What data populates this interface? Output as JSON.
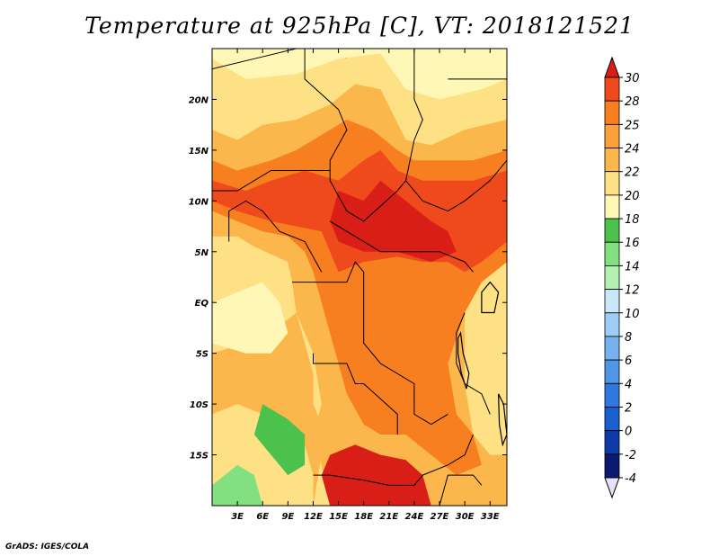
{
  "title": "Temperature at 925hPa [C], VT: 2018121521",
  "credit": "GrADS: IGES/COLA",
  "map": {
    "lon_range": [
      0,
      35
    ],
    "lat_range": [
      -20,
      25
    ],
    "lon_ticks": [
      {
        "value": 3,
        "label": "3E"
      },
      {
        "value": 6,
        "label": "6E"
      },
      {
        "value": 9,
        "label": "9E"
      },
      {
        "value": 12,
        "label": "12E"
      },
      {
        "value": 15,
        "label": "15E"
      },
      {
        "value": 18,
        "label": "18E"
      },
      {
        "value": 21,
        "label": "21E"
      },
      {
        "value": 24,
        "label": "24E"
      },
      {
        "value": 27,
        "label": "27E"
      },
      {
        "value": 30,
        "label": "30E"
      },
      {
        "value": 33,
        "label": "33E"
      }
    ],
    "lat_ticks": [
      {
        "value": 20,
        "label": "20N"
      },
      {
        "value": 15,
        "label": "15N"
      },
      {
        "value": 10,
        "label": "10N"
      },
      {
        "value": 5,
        "label": "5N"
      },
      {
        "value": 0,
        "label": "EQ"
      },
      {
        "value": -5,
        "label": "5S"
      },
      {
        "value": -10,
        "label": "10S"
      },
      {
        "value": -15,
        "label": "15S"
      }
    ],
    "color_scale": [
      {
        "min": 28,
        "color": "#d91e18"
      },
      {
        "min": 26,
        "color": "#ef4a1c"
      },
      {
        "min": 24,
        "color": "#f77f1f"
      },
      {
        "min": 22,
        "color": "#fbb74b"
      },
      {
        "min": 20,
        "color": "#fde184"
      },
      {
        "min": 18,
        "color": "#fff7b5"
      },
      {
        "min": 16,
        "color": "#4cc24c"
      },
      {
        "min": 14,
        "color": "#82e080"
      },
      {
        "min": -99,
        "color": "#b4f0b0"
      }
    ],
    "temperature_regions": [
      {
        "temp": 21,
        "points": [
          [
            0,
            25
          ],
          [
            35,
            25
          ],
          [
            35,
            -20
          ],
          [
            0,
            -20
          ]
        ]
      },
      {
        "temp": 15,
        "points": [
          [
            0,
            25
          ],
          [
            4,
            24
          ],
          [
            7,
            25
          ],
          [
            0,
            25
          ]
        ]
      },
      {
        "temp": 15,
        "points": [
          [
            11,
            25
          ],
          [
            16,
            24
          ],
          [
            16,
            25
          ]
        ]
      },
      {
        "temp": 15,
        "points": [
          [
            21,
            25
          ],
          [
            26,
            22.5
          ],
          [
            29,
            21.5
          ],
          [
            31,
            23
          ],
          [
            33,
            24
          ],
          [
            35,
            25
          ]
        ]
      },
      {
        "temp": 19,
        "points": [
          [
            0,
            24
          ],
          [
            4,
            22
          ],
          [
            10,
            22.5
          ],
          [
            15,
            24
          ],
          [
            20,
            24.5
          ],
          [
            23,
            21
          ],
          [
            27,
            20
          ],
          [
            32,
            21
          ],
          [
            35,
            22
          ],
          [
            35,
            25
          ],
          [
            0,
            25
          ]
        ]
      },
      {
        "temp": 23,
        "points": [
          [
            0,
            17
          ],
          [
            3,
            16
          ],
          [
            6,
            17.5
          ],
          [
            10,
            18
          ],
          [
            14,
            19.5
          ],
          [
            17,
            21.5
          ],
          [
            20,
            21
          ],
          [
            23,
            16
          ],
          [
            26,
            15.5
          ],
          [
            30,
            17
          ],
          [
            35,
            18
          ],
          [
            35,
            6
          ],
          [
            33,
            4
          ],
          [
            30,
            1
          ],
          [
            30,
            -8
          ],
          [
            31,
            -13
          ],
          [
            33,
            -15
          ],
          [
            35,
            -15
          ],
          [
            35,
            -20
          ],
          [
            14,
            -20
          ],
          [
            13,
            -16
          ],
          [
            12,
            -13
          ],
          [
            13,
            -10
          ],
          [
            12,
            -5
          ],
          [
            11,
            -3
          ],
          [
            10,
            -1
          ],
          [
            9.5,
            2
          ],
          [
            9,
            4
          ],
          [
            5,
            5.5
          ],
          [
            3,
            6.5
          ],
          [
            0,
            6.5
          ]
        ]
      },
      {
        "temp": 25,
        "points": [
          [
            0,
            14
          ],
          [
            3,
            13
          ],
          [
            7,
            14
          ],
          [
            10,
            15
          ],
          [
            13,
            16.5
          ],
          [
            16,
            18
          ],
          [
            19,
            17
          ],
          [
            22,
            15
          ],
          [
            24,
            14
          ],
          [
            27,
            14
          ],
          [
            31,
            14
          ],
          [
            35,
            15
          ],
          [
            35,
            4
          ],
          [
            32,
            2
          ],
          [
            30,
            -1
          ],
          [
            28,
            -6
          ],
          [
            29,
            -11
          ],
          [
            31,
            -13
          ],
          [
            32,
            -16
          ],
          [
            29,
            -17
          ],
          [
            26,
            -15
          ],
          [
            23,
            -13
          ],
          [
            20,
            -13
          ],
          [
            18,
            -12
          ],
          [
            16,
            -9
          ],
          [
            15,
            -6
          ],
          [
            14,
            -3
          ],
          [
            13,
            0
          ],
          [
            12,
            3
          ],
          [
            11,
            5
          ],
          [
            9,
            6.5
          ],
          [
            6,
            7
          ],
          [
            3,
            8
          ],
          [
            0,
            9
          ]
        ]
      },
      {
        "temp": 27,
        "points": [
          [
            0,
            12
          ],
          [
            4,
            11
          ],
          [
            7,
            12
          ],
          [
            11,
            13
          ],
          [
            15,
            12
          ],
          [
            18,
            14
          ],
          [
            20,
            15
          ],
          [
            22,
            13
          ],
          [
            25,
            12
          ],
          [
            28,
            12
          ],
          [
            31,
            12
          ],
          [
            35,
            13
          ],
          [
            35,
            6
          ],
          [
            32,
            4
          ],
          [
            30,
            3
          ],
          [
            28,
            4
          ],
          [
            25,
            4
          ],
          [
            22,
            4.5
          ],
          [
            18,
            4
          ],
          [
            15,
            3
          ],
          [
            14,
            5
          ],
          [
            13,
            7
          ],
          [
            10,
            7.5
          ],
          [
            7,
            8
          ],
          [
            3,
            9
          ],
          [
            0,
            10
          ]
        ]
      },
      {
        "temp": 29,
        "points": [
          [
            15,
            11
          ],
          [
            18,
            10
          ],
          [
            20,
            12
          ],
          [
            23,
            10
          ],
          [
            26,
            8
          ],
          [
            28,
            7
          ],
          [
            29,
            5
          ],
          [
            26,
            4
          ],
          [
            22,
            5
          ],
          [
            18,
            5
          ],
          [
            15,
            6
          ],
          [
            14,
            8
          ]
        ]
      },
      {
        "temp": 29,
        "points": [
          [
            14,
            -15
          ],
          [
            17,
            -14
          ],
          [
            20,
            -15
          ],
          [
            23,
            -15.5
          ],
          [
            25,
            -17
          ],
          [
            26,
            -20
          ],
          [
            14,
            -20
          ],
          [
            13,
            -17
          ]
        ]
      },
      {
        "temp": 22,
        "points": [
          [
            0,
            -5
          ],
          [
            4,
            -4
          ],
          [
            7,
            -3
          ],
          [
            10,
            -1
          ],
          [
            11,
            -4
          ],
          [
            12,
            -7
          ],
          [
            12,
            -10
          ],
          [
            13,
            -12
          ],
          [
            13,
            -15
          ],
          [
            12,
            -20
          ],
          [
            0,
            -20
          ]
        ]
      },
      {
        "temp": 20,
        "points": [
          [
            0,
            -11
          ],
          [
            3,
            -10
          ],
          [
            6,
            -11
          ],
          [
            9,
            -12
          ],
          [
            11,
            -14
          ],
          [
            12,
            -17
          ],
          [
            12,
            -20
          ],
          [
            0,
            -20
          ]
        ]
      },
      {
        "temp": 16,
        "points": [
          [
            6,
            -10
          ],
          [
            9,
            -11.5
          ],
          [
            11,
            -13
          ],
          [
            11,
            -16
          ],
          [
            9,
            -17
          ],
          [
            7,
            -15
          ],
          [
            5,
            -13
          ]
        ]
      },
      {
        "temp": 14,
        "points": [
          [
            0,
            -18
          ],
          [
            3,
            -16
          ],
          [
            5,
            -17
          ],
          [
            6,
            -20
          ],
          [
            0,
            -20
          ]
        ]
      },
      {
        "temp": 19,
        "points": [
          [
            0,
            0
          ],
          [
            3,
            1
          ],
          [
            6,
            2
          ],
          [
            8,
            0
          ],
          [
            9,
            -3
          ],
          [
            7,
            -5
          ],
          [
            4,
            -5
          ],
          [
            0,
            -4
          ]
        ]
      }
    ],
    "boundaries": [
      [
        [
          0,
          23
        ],
        [
          5,
          24
        ],
        [
          10,
          25
        ]
      ],
      [
        [
          11,
          25
        ],
        [
          11,
          22
        ],
        [
          15,
          19
        ],
        [
          16,
          17
        ],
        [
          14,
          14
        ],
        [
          14,
          12
        ]
      ],
      [
        [
          24,
          25
        ],
        [
          24,
          20
        ],
        [
          25,
          18
        ],
        [
          24,
          16
        ],
        [
          23,
          12
        ],
        [
          25,
          10
        ],
        [
          28,
          9
        ],
        [
          30,
          10
        ],
        [
          33,
          12
        ],
        [
          35,
          14
        ]
      ],
      [
        [
          14,
          12
        ],
        [
          16,
          9
        ],
        [
          18,
          8
        ],
        [
          22,
          11
        ],
        [
          23,
          12
        ]
      ],
      [
        [
          14,
          8
        ],
        [
          16,
          7
        ],
        [
          18,
          6
        ],
        [
          20,
          5
        ],
        [
          23,
          5
        ],
        [
          27,
          5
        ],
        [
          30,
          4
        ],
        [
          31,
          3
        ]
      ],
      [
        [
          0,
          11
        ],
        [
          3,
          11
        ],
        [
          7,
          13
        ],
        [
          10,
          13
        ],
        [
          12,
          13
        ],
        [
          14,
          13
        ]
      ],
      [
        [
          2,
          6
        ],
        [
          2,
          9
        ],
        [
          4,
          10
        ],
        [
          6,
          9
        ],
        [
          8,
          7
        ],
        [
          11,
          6
        ],
        [
          13,
          3
        ]
      ],
      [
        [
          9.5,
          2
        ],
        [
          11,
          2
        ],
        [
          14,
          2
        ],
        [
          16,
          2
        ],
        [
          17,
          4
        ],
        [
          18,
          3
        ],
        [
          18,
          -4
        ],
        [
          20,
          -6
        ],
        [
          24,
          -8
        ],
        [
          24,
          -11
        ],
        [
          26,
          -12
        ],
        [
          28,
          -11
        ]
      ],
      [
        [
          12,
          -5
        ],
        [
          12,
          -6
        ],
        [
          14,
          -6
        ],
        [
          16,
          -6
        ],
        [
          17,
          -8
        ],
        [
          18,
          -8
        ],
        [
          22,
          -11
        ],
        [
          22,
          -13
        ]
      ],
      [
        [
          12,
          -17
        ],
        [
          14,
          -17
        ],
        [
          18,
          -17.5
        ],
        [
          21,
          -18
        ],
        [
          24,
          -18
        ],
        [
          25,
          -17
        ],
        [
          28,
          -16
        ],
        [
          30,
          -15
        ],
        [
          31,
          -13
        ]
      ],
      [
        [
          30,
          -1
        ],
        [
          29,
          -3
        ],
        [
          29,
          -6
        ],
        [
          30,
          -8
        ],
        [
          32,
          -9
        ],
        [
          33,
          -11
        ]
      ],
      [
        [
          27,
          -20
        ],
        [
          28,
          -17
        ],
        [
          31,
          -17
        ],
        [
          32,
          -18
        ]
      ],
      [
        [
          24,
          25
        ],
        [
          35,
          25
        ]
      ],
      [
        [
          28,
          22
        ],
        [
          35,
          22
        ]
      ]
    ],
    "lakes": [
      {
        "points": [
          [
            32,
            1
          ],
          [
            33,
            2
          ],
          [
            34,
            1
          ],
          [
            33.5,
            -1
          ],
          [
            32,
            -1
          ]
        ]
      },
      {
        "points": [
          [
            29.2,
            -3.5
          ],
          [
            29.5,
            -3
          ],
          [
            29.8,
            -5
          ],
          [
            30.5,
            -7
          ],
          [
            30.2,
            -8.5
          ],
          [
            29.6,
            -7
          ],
          [
            29.2,
            -5
          ]
        ]
      },
      {
        "points": [
          [
            34,
            -9
          ],
          [
            34.6,
            -10
          ],
          [
            35,
            -13
          ],
          [
            34.5,
            -14
          ],
          [
            34.1,
            -12
          ]
        ]
      }
    ]
  },
  "colorbar": {
    "levels": [
      30,
      28,
      25,
      24,
      22,
      20,
      18,
      16,
      14,
      12,
      10,
      8,
      6,
      4,
      2,
      0,
      -2,
      -4
    ],
    "labels": [
      "30",
      "28",
      "25",
      "24",
      "22",
      "20",
      "18",
      "16",
      "14",
      "12",
      "10",
      "8",
      "6",
      "4",
      "2",
      "0",
      "-2",
      "-4"
    ],
    "colors": [
      "#d91e18",
      "#ef4a1c",
      "#f77f1f",
      "#fba03a",
      "#fbb74b",
      "#fde184",
      "#fff7b5",
      "#4cc24c",
      "#82e080",
      "#b4f0b0",
      "#c8e8f8",
      "#a0cdf5",
      "#78b2ee",
      "#5096e6",
      "#3078e0",
      "#1860d0",
      "#0e3aa8",
      "#0a1a70"
    ],
    "top_arrow_color": "#d91e18",
    "bottom_arrow_color": "#e8e0f8"
  }
}
